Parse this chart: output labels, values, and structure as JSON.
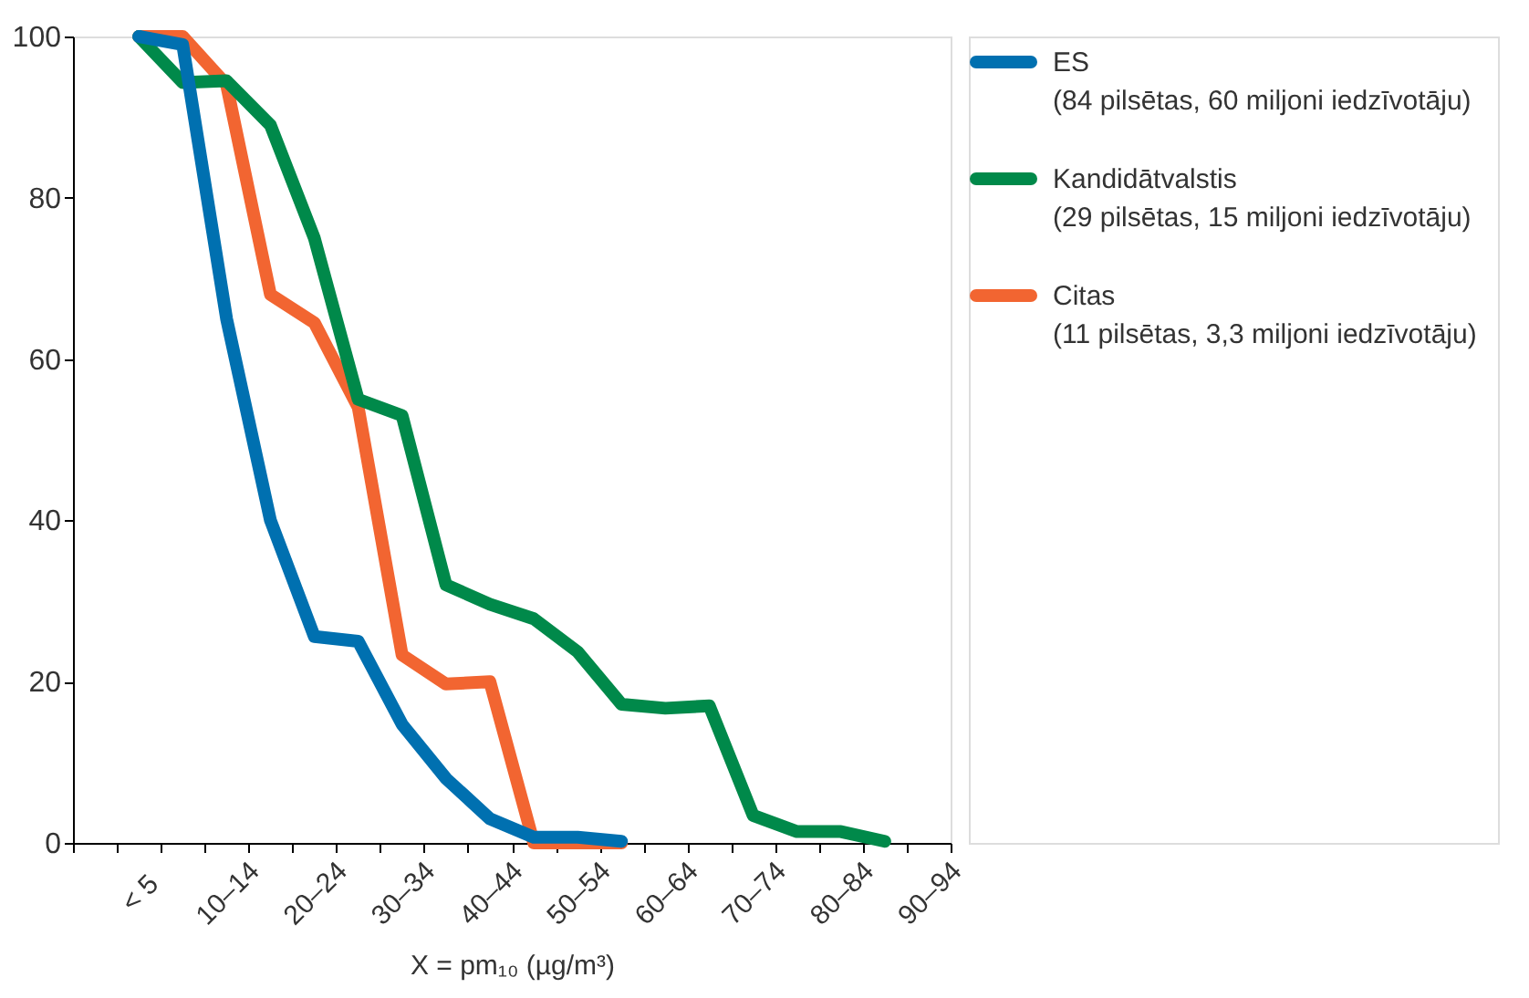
{
  "chart_data": {
    "type": "line",
    "xlabel": "X = pm₁₀ (µg/m³)",
    "categories": [
      null,
      "< 5",
      null,
      "10–14",
      null,
      "20–24",
      null,
      "30–34",
      null,
      "40–44",
      null,
      "50–54",
      null,
      "60–64",
      null,
      "70–74",
      null,
      "80–84",
      null,
      "90–94"
    ],
    "ylim": [
      0,
      100
    ],
    "yticks": [
      0,
      20,
      40,
      60,
      80,
      100
    ],
    "grid": false,
    "legend": "right",
    "line_style": "solid",
    "series": [
      {
        "name": "ES\n(84 pilsētas, 60 miljoni iedzīvotāju)",
        "color": "#0070b0",
        "values": [
          null,
          100,
          99,
          65,
          40,
          25.6,
          25,
          14.7,
          8,
          3,
          0.7,
          0.7,
          0.2,
          null,
          null,
          null,
          null,
          null,
          null,
          null
        ]
      },
      {
        "name": "Kandidātvalstis\n(29 pilsētas, 15 miljoni iedzīvotāju)",
        "color": "#00894a",
        "values": [
          null,
          100,
          94.3,
          94.5,
          89,
          75,
          55,
          53,
          32,
          29.6,
          27.8,
          23.7,
          17.2,
          16.7,
          17,
          3.4,
          1.4,
          1.4,
          0.2,
          null
        ]
      },
      {
        "name": "Citas\n(11 pilsētas, 3,3 miljoni iedzīvotāju)",
        "color": "#f26531",
        "values": [
          null,
          100,
          100,
          94,
          68,
          64.5,
          54,
          23.3,
          19.7,
          20,
          0,
          0,
          0,
          null,
          null,
          null,
          null,
          null,
          null,
          null
        ]
      }
    ]
  }
}
